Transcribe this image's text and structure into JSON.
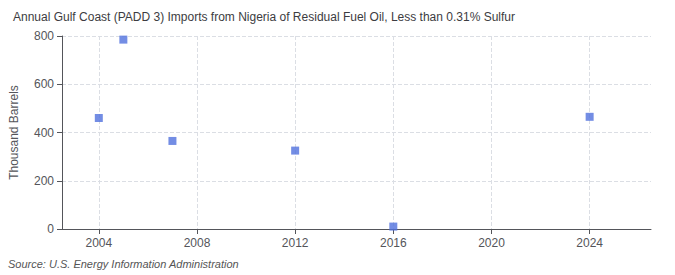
{
  "chart_data": {
    "type": "scatter",
    "title": "Annual Gulf Coast (PADD 3) Imports from Nigeria of Residual Fuel Oil, Less than 0.31% Sulfur",
    "ylabel": "Thousand Barrels",
    "source": "Source: U.S. Energy Information Administration",
    "x": [
      2004,
      2005,
      2007,
      2012,
      2016,
      2024
    ],
    "values": [
      460,
      785,
      365,
      325,
      10,
      465
    ],
    "marker": "square",
    "xlim": [
      2002.5,
      2026.5
    ],
    "xticks": [
      2004,
      2008,
      2012,
      2016,
      2020,
      2024
    ],
    "ylim": [
      0,
      800
    ],
    "yticks": [
      0,
      200,
      400,
      600,
      800
    ],
    "grid": true
  }
}
